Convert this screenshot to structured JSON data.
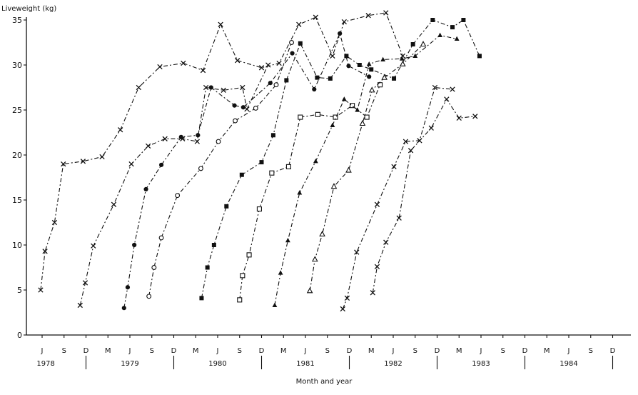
{
  "chart_data": {
    "type": "line",
    "title": "",
    "ylabel": "Liveweight (kg)",
    "xlabel": "Month and year",
    "ylim": [
      0,
      35
    ],
    "yticks": [
      0,
      5,
      10,
      15,
      20,
      25,
      30,
      35
    ],
    "x_unit": "months since January 1978",
    "xlim": [
      0,
      81
    ],
    "xticks": [
      {
        "x": 0,
        "label": "J"
      },
      {
        "x": 3,
        "label": "S"
      },
      {
        "x": 6,
        "label": "D"
      },
      {
        "x": 9,
        "label": "M"
      },
      {
        "x": 12,
        "label": "J"
      },
      {
        "x": 15,
        "label": "S"
      },
      {
        "x": 18,
        "label": "D"
      },
      {
        "x": 21,
        "label": "M"
      },
      {
        "x": 24,
        "label": "J"
      },
      {
        "x": 27,
        "label": "S"
      },
      {
        "x": 30,
        "label": "D"
      },
      {
        "x": 33,
        "label": "M"
      },
      {
        "x": 36,
        "label": "J"
      },
      {
        "x": 39,
        "label": "S"
      },
      {
        "x": 42,
        "label": "D"
      },
      {
        "x": 45,
        "label": "M"
      },
      {
        "x": 48,
        "label": "J"
      },
      {
        "x": 51,
        "label": "S"
      },
      {
        "x": 54,
        "label": "D"
      },
      {
        "x": 57,
        "label": "M"
      },
      {
        "x": 60,
        "label": "J"
      },
      {
        "x": 63,
        "label": "S"
      },
      {
        "x": 66,
        "label": "D"
      },
      {
        "x": 69,
        "label": "M"
      },
      {
        "x": 72,
        "label": "J"
      },
      {
        "x": 75,
        "label": "S"
      },
      {
        "x": 78,
        "label": "D"
      }
    ],
    "years": [
      {
        "label": "1978",
        "x": 0.5
      },
      {
        "label": "1979",
        "x": 12
      },
      {
        "label": "1980",
        "x": 24
      },
      {
        "label": "1981",
        "x": 36
      },
      {
        "label": "1982",
        "x": 48
      },
      {
        "label": "1983",
        "x": 60
      },
      {
        "label": "1984",
        "x": 72
      }
    ],
    "year_dividers": [
      6,
      18,
      30,
      42,
      54,
      66,
      78
    ],
    "series": [
      {
        "marker": "x",
        "points": [
          [
            -0.2,
            5.0
          ],
          [
            0.4,
            9.3
          ],
          [
            1.7,
            12.5
          ],
          [
            2.9,
            19.0
          ],
          [
            5.6,
            19.3
          ],
          [
            8.2,
            19.8
          ],
          [
            10.7,
            22.8
          ],
          [
            13.2,
            27.5
          ],
          [
            16.1,
            29.8
          ],
          [
            19.3,
            30.2
          ],
          [
            22.0,
            29.4
          ],
          [
            24.4,
            34.5
          ],
          [
            26.7,
            30.5
          ],
          [
            30.0,
            29.7
          ],
          [
            32.4,
            30.2
          ],
          [
            35.1,
            34.5
          ],
          [
            37.4,
            35.3
          ],
          [
            39.7,
            31.0
          ],
          [
            41.3,
            34.8
          ],
          [
            44.6,
            35.5
          ],
          [
            47.0,
            35.8
          ],
          [
            49.3,
            31.0
          ]
        ]
      },
      {
        "marker": "x",
        "points": [
          [
            5.2,
            3.3
          ],
          [
            5.9,
            5.8
          ],
          [
            7.0,
            9.9
          ],
          [
            9.8,
            14.5
          ],
          [
            12.2,
            19.0
          ],
          [
            14.5,
            21.0
          ],
          [
            16.8,
            21.8
          ],
          [
            19.2,
            21.8
          ],
          [
            21.2,
            21.5
          ],
          [
            22.4,
            27.5
          ],
          [
            24.8,
            27.2
          ],
          [
            27.4,
            27.5
          ],
          [
            28.0,
            25.1
          ],
          [
            30.9,
            30.0
          ]
        ]
      },
      {
        "marker": "dot",
        "points": [
          [
            11.2,
            3.0
          ],
          [
            11.7,
            5.3
          ],
          [
            12.6,
            10.0
          ],
          [
            14.2,
            16.2
          ],
          [
            16.3,
            18.9
          ],
          [
            19.0,
            22.0
          ],
          [
            21.3,
            22.2
          ],
          [
            23.1,
            27.5
          ],
          [
            26.3,
            25.5
          ],
          [
            27.5,
            25.3
          ],
          [
            31.2,
            28.0
          ],
          [
            34.2,
            31.3
          ],
          [
            37.2,
            27.3
          ],
          [
            40.7,
            33.5
          ],
          [
            41.9,
            29.9
          ],
          [
            44.7,
            28.7
          ]
        ]
      },
      {
        "marker": "circle",
        "points": [
          [
            14.6,
            4.3
          ],
          [
            15.3,
            7.5
          ],
          [
            16.3,
            10.8
          ],
          [
            18.5,
            15.5
          ],
          [
            21.7,
            18.5
          ],
          [
            24.1,
            21.5
          ],
          [
            26.4,
            23.8
          ],
          [
            29.2,
            25.2
          ],
          [
            32.0,
            27.8
          ],
          [
            34.1,
            32.5
          ]
        ]
      },
      {
        "marker": "square",
        "points": [
          [
            21.8,
            4.1
          ],
          [
            22.6,
            7.5
          ],
          [
            23.5,
            10.0
          ],
          [
            25.2,
            14.3
          ],
          [
            27.3,
            17.8
          ],
          [
            30.0,
            19.2
          ],
          [
            31.6,
            22.2
          ],
          [
            33.4,
            28.3
          ],
          [
            35.3,
            32.4
          ],
          [
            37.6,
            28.6
          ],
          [
            39.4,
            28.5
          ],
          [
            41.6,
            31.0
          ],
          [
            43.4,
            30.0
          ],
          [
            45.0,
            29.5
          ],
          [
            48.1,
            28.5
          ],
          [
            50.7,
            32.3
          ],
          [
            53.4,
            35.0
          ],
          [
            56.1,
            34.2
          ],
          [
            57.6,
            35.0
          ],
          [
            59.8,
            31.0
          ]
        ]
      },
      {
        "marker": "open-square",
        "points": [
          [
            27.0,
            3.9
          ],
          [
            27.4,
            6.6
          ],
          [
            28.3,
            8.9
          ],
          [
            29.7,
            14.0
          ],
          [
            31.4,
            18.0
          ],
          [
            33.7,
            18.7
          ],
          [
            35.3,
            24.2
          ],
          [
            37.7,
            24.5
          ],
          [
            40.1,
            24.2
          ],
          [
            42.4,
            25.5
          ],
          [
            44.4,
            24.2
          ],
          [
            46.2,
            27.8
          ]
        ]
      },
      {
        "marker": "triangle",
        "points": [
          [
            31.8,
            3.3
          ],
          [
            32.6,
            6.9
          ],
          [
            33.6,
            10.5
          ],
          [
            35.2,
            15.8
          ],
          [
            37.4,
            19.3
          ],
          [
            39.7,
            23.3
          ],
          [
            41.3,
            26.2
          ],
          [
            43.1,
            25.0
          ],
          [
            44.7,
            30.1
          ],
          [
            46.6,
            30.6
          ],
          [
            49.2,
            30.7
          ],
          [
            51.0,
            31.0
          ],
          [
            54.4,
            33.3
          ],
          [
            56.7,
            32.9
          ]
        ]
      },
      {
        "marker": "open-triangle",
        "points": [
          [
            36.6,
            4.9
          ],
          [
            37.3,
            8.4
          ],
          [
            38.3,
            11.2
          ],
          [
            39.9,
            16.5
          ],
          [
            41.9,
            18.3
          ],
          [
            43.8,
            23.5
          ],
          [
            45.1,
            27.2
          ],
          [
            46.8,
            28.6
          ],
          [
            49.3,
            30.1
          ],
          [
            52.1,
            32.3
          ]
        ]
      },
      {
        "marker": "x",
        "points": [
          [
            41.1,
            2.9
          ],
          [
            41.7,
            4.1
          ],
          [
            43.0,
            9.2
          ],
          [
            45.8,
            14.5
          ],
          [
            48.1,
            18.7
          ],
          [
            49.7,
            21.5
          ],
          [
            51.6,
            21.6
          ],
          [
            53.7,
            27.5
          ],
          [
            56.1,
            27.3
          ]
        ]
      },
      {
        "marker": "x",
        "points": [
          [
            45.2,
            4.7
          ],
          [
            45.8,
            7.6
          ],
          [
            47.0,
            10.3
          ],
          [
            48.8,
            13.0
          ],
          [
            50.4,
            20.5
          ],
          [
            53.2,
            23.0
          ],
          [
            55.3,
            26.2
          ],
          [
            57.0,
            24.1
          ],
          [
            59.2,
            24.3
          ]
        ]
      }
    ]
  }
}
